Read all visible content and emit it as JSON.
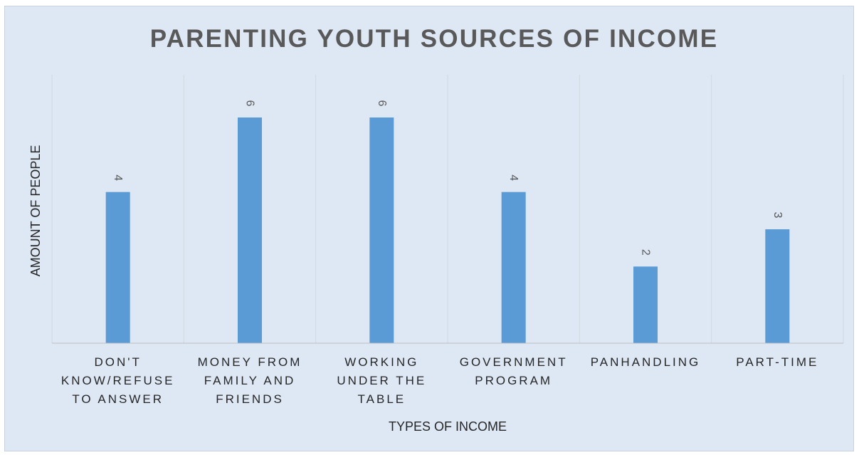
{
  "chart_data": {
    "type": "bar",
    "title": "PARENTING YOUTH SOURCES OF INCOME",
    "xlabel": "TYPES OF INCOME",
    "ylabel": "AMOUNT OF PEOPLE",
    "categories": [
      "DON'T KNOW/REFUSE TO ANSWER",
      "MONEY FROM FAMILY AND FRIENDS",
      "WORKING UNDER THE TABLE",
      "GOVERNMENT PROGRAM",
      "PANHANDLING",
      "PART-TIME"
    ],
    "category_label_lines": [
      [
        "DON'T",
        "KNOW/REFUSE",
        "TO ANSWER"
      ],
      [
        "MONEY FROM",
        "FAMILY AND",
        "FRIENDS"
      ],
      [
        "WORKING",
        "UNDER THE",
        "TABLE"
      ],
      [
        "GOVERNMENT",
        "PROGRAM"
      ],
      [
        "PANHANDLING"
      ],
      [
        "PART-TIME"
      ]
    ],
    "values": [
      4,
      6,
      6,
      4,
      2,
      3
    ],
    "ylim": [
      0,
      6
    ],
    "grid": "vertical-category-dividers",
    "legend": "none",
    "data_labels": true,
    "bar_color": "#5b9bd5",
    "background_color": "#dee8f5"
  }
}
